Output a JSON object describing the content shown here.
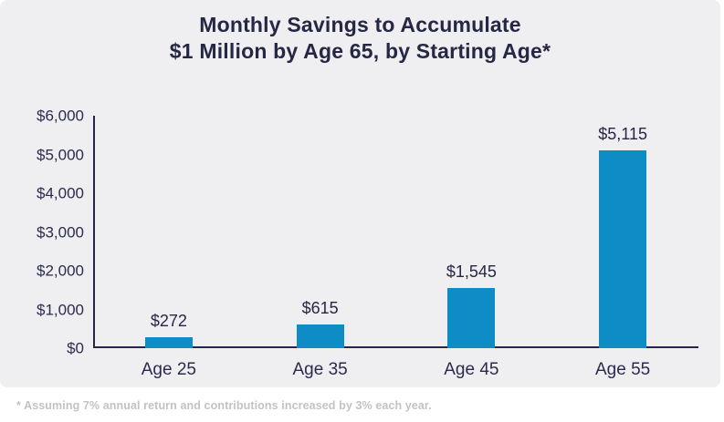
{
  "title_line1": "Monthly Savings to Accumulate",
  "title_line2": "$1 Million by Age 65, by Starting Age*",
  "footnote": "* Assuming 7% annual return and contributions increased by 3% each year.",
  "colors": {
    "bar": "#0d8cc6",
    "axis": "#262645",
    "panel_background": "#efeff1",
    "footnote_text": "#c3c3c7"
  },
  "chart_data": {
    "type": "bar",
    "title": "Monthly Savings to Accumulate $1 Million by Age 65, by Starting Age*",
    "categories": [
      "Age 25",
      "Age 35",
      "Age 45",
      "Age 55"
    ],
    "values": [
      272,
      615,
      1545,
      5115
    ],
    "value_labels": [
      "$272",
      "$615",
      "$1,545",
      "$5,115"
    ],
    "yticks": [
      0,
      1000,
      2000,
      3000,
      4000,
      5000,
      6000
    ],
    "ytick_labels": [
      "$0",
      "$1,000",
      "$2,000",
      "$3,000",
      "$4,000",
      "$5,000",
      "$6,000"
    ],
    "ylim": [
      0,
      6000
    ],
    "xlabel": "",
    "ylabel": "",
    "grid": false,
    "legend": "none"
  }
}
